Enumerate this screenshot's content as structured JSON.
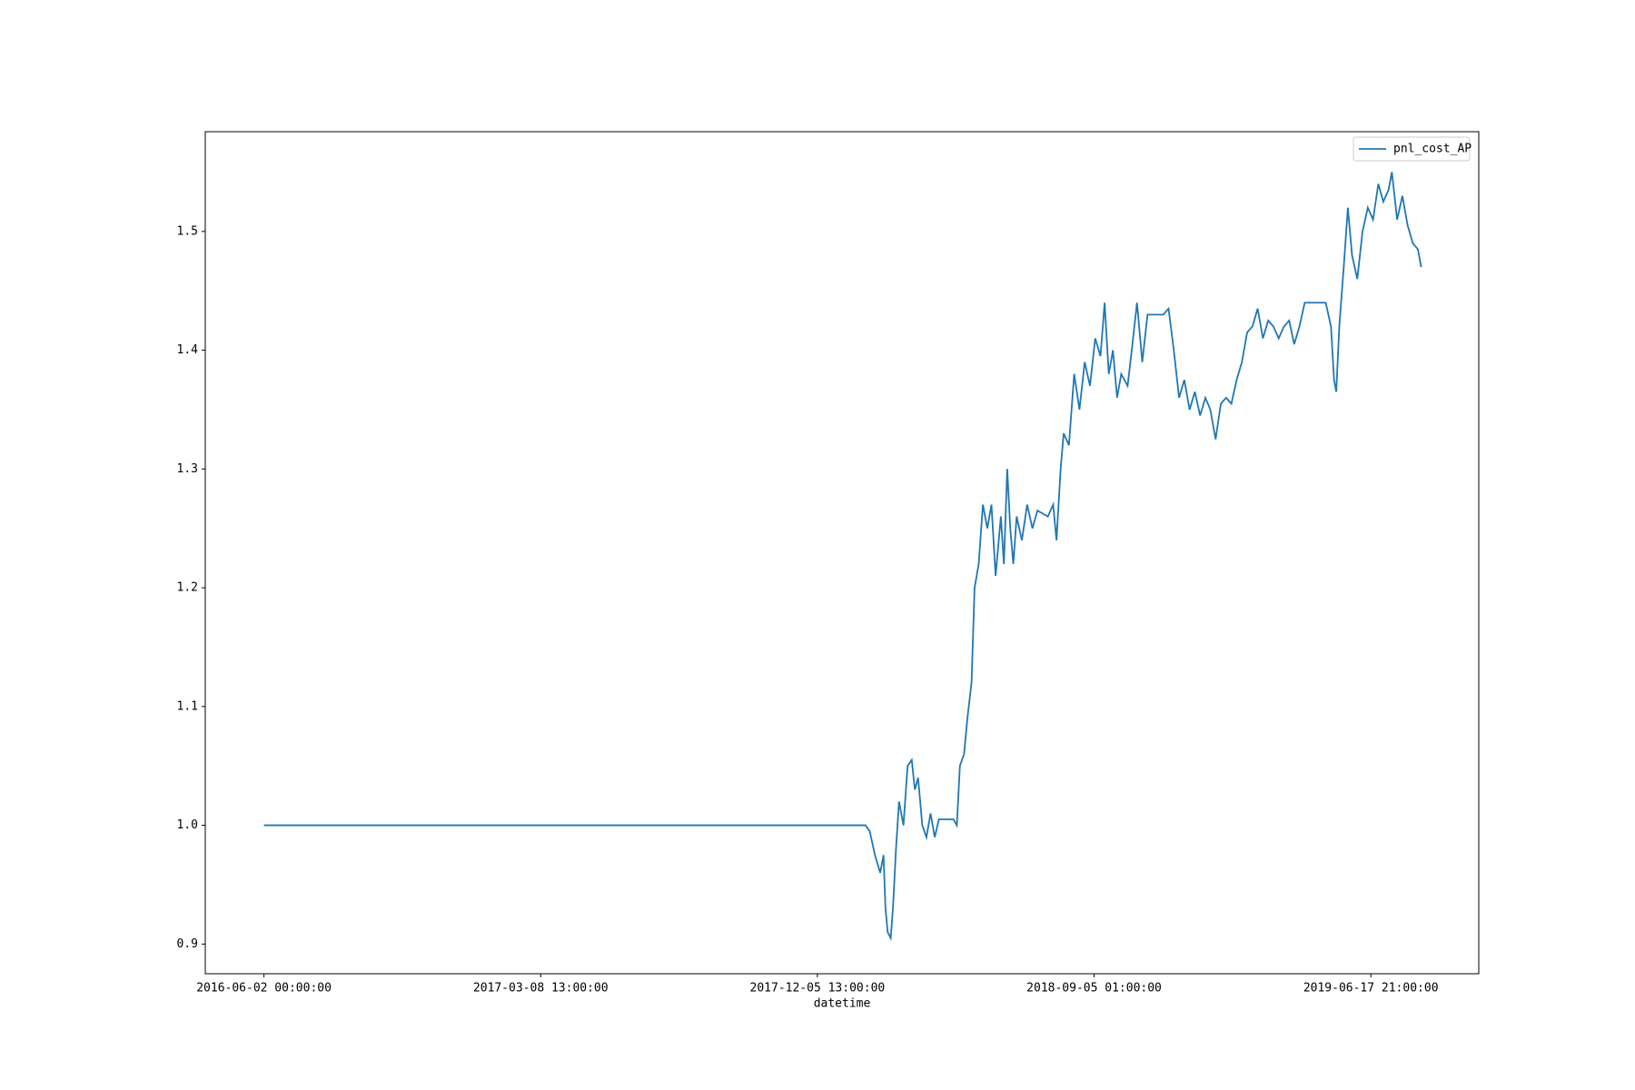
{
  "chart_data": {
    "type": "line",
    "x_label": "datetime",
    "x": [
      0,
      2174,
      2189,
      2208,
      2227,
      2239,
      2246,
      2254,
      2265,
      2273,
      2284,
      2295,
      2311,
      2326,
      2341,
      2352,
      2364,
      2379,
      2394,
      2409,
      2424,
      2439,
      2492,
      2504,
      2515,
      2530,
      2542,
      2557,
      2568,
      2583,
      2598,
      2614,
      2629,
      2644,
      2663,
      2674,
      2686,
      2697,
      2708,
      2720,
      2739,
      2758,
      2777,
      2795,
      2833,
      2852,
      2864,
      2879,
      2890,
      2909,
      2928,
      2947,
      2966,
      2985,
      3004,
      3023,
      3038,
      3053,
      3068,
      3083,
      3098,
      3121,
      3136,
      3155,
      3174,
      3193,
      3212,
      3250,
      3269,
      3288,
      3307,
      3326,
      3345,
      3364,
      3383,
      3402,
      3420,
      3439,
      3458,
      3477,
      3496,
      3515,
      3534,
      3553,
      3572,
      3591,
      3610,
      3629,
      3648,
      3667,
      3686,
      3705,
      3723,
      3742,
      3761,
      3837,
      3856,
      3867,
      3875,
      3886,
      3902,
      3917,
      3932,
      3951,
      3970,
      3989,
      4008,
      4027,
      4045,
      4064,
      4076,
      4095,
      4114,
      4133,
      4152,
      4170,
      4182
    ],
    "series": [
      {
        "name": "pnl_cost_AP",
        "color": "#1f77b4",
        "values": [
          1.0,
          1.0,
          0.995,
          0.975,
          0.96,
          0.975,
          0.93,
          0.91,
          0.905,
          0.93,
          0.98,
          1.02,
          1.0,
          1.05,
          1.055,
          1.03,
          1.04,
          1.0,
          0.99,
          1.01,
          0.99,
          1.005,
          1.005,
          1.0,
          1.05,
          1.06,
          1.09,
          1.12,
          1.2,
          1.22,
          1.27,
          1.25,
          1.27,
          1.21,
          1.26,
          1.22,
          1.3,
          1.25,
          1.22,
          1.26,
          1.24,
          1.27,
          1.25,
          1.265,
          1.26,
          1.27,
          1.24,
          1.3,
          1.33,
          1.32,
          1.38,
          1.35,
          1.39,
          1.37,
          1.41,
          1.395,
          1.44,
          1.38,
          1.4,
          1.36,
          1.38,
          1.37,
          1.4,
          1.44,
          1.39,
          1.43,
          1.43,
          1.43,
          1.435,
          1.4,
          1.36,
          1.375,
          1.35,
          1.365,
          1.345,
          1.36,
          1.35,
          1.325,
          1.355,
          1.36,
          1.355,
          1.375,
          1.39,
          1.415,
          1.42,
          1.435,
          1.41,
          1.425,
          1.42,
          1.41,
          1.42,
          1.425,
          1.405,
          1.42,
          1.44,
          1.44,
          1.42,
          1.375,
          1.365,
          1.42,
          1.47,
          1.52,
          1.48,
          1.46,
          1.5,
          1.52,
          1.51,
          1.54,
          1.525,
          1.535,
          1.55,
          1.51,
          1.53,
          1.505,
          1.49,
          1.485,
          1.47
        ]
      }
    ],
    "xlim": [
      -212,
      4390
    ],
    "xticks": [
      {
        "value": 0,
        "label": "2016-06-02 00:00:00"
      },
      {
        "value": 1000,
        "label": "2017-03-08 13:00:00"
      },
      {
        "value": 2000,
        "label": "2017-12-05 13:00:00"
      },
      {
        "value": 3000,
        "label": "2018-09-05 01:00:00"
      },
      {
        "value": 4000,
        "label": "2019-06-17 21:00:00"
      }
    ],
    "ylim": [
      0.875,
      1.584
    ],
    "yticks": [
      0.9,
      {
        "value": 1,
        "label": "1.0"
      },
      1.1,
      1.2,
      1.3,
      1.4,
      1.5
    ],
    "legend": "upper right",
    "grid": false
  }
}
